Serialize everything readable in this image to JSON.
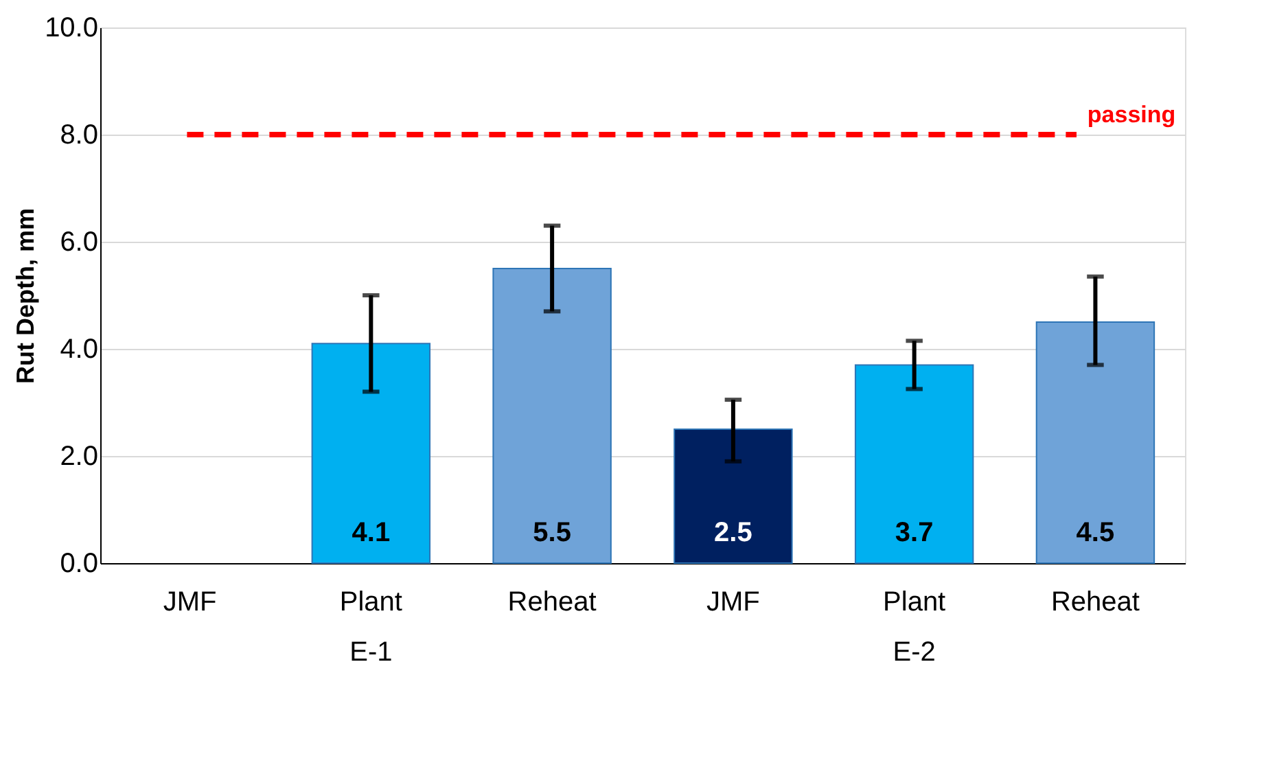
{
  "chart_data": {
    "type": "bar",
    "ylabel": "Rut Depth, mm",
    "categories": [
      "JMF",
      "Plant",
      "Reheat",
      "JMF",
      "Plant",
      "Reheat"
    ],
    "values": [
      null,
      4.1,
      5.5,
      2.5,
      3.7,
      4.5
    ],
    "colors": [
      "#002060",
      "#00b0f0",
      "#6fa3d8",
      "#002060",
      "#00b0f0",
      "#6fa3d8"
    ],
    "errors": [
      null,
      [
        3.2,
        5.0
      ],
      [
        4.7,
        6.3
      ],
      [
        1.9,
        3.05
      ],
      [
        3.25,
        4.15
      ],
      [
        3.7,
        5.35
      ]
    ],
    "ylim": [
      0,
      10
    ],
    "yticks": [
      {
        "value": 0,
        "label": "0.0"
      },
      {
        "value": 2,
        "label": "2.0"
      },
      {
        "value": 4,
        "label": "4.0"
      },
      {
        "value": 6,
        "label": "6.0"
      },
      {
        "value": 8,
        "label": "8.0"
      },
      {
        "value": 10,
        "label": "10.0"
      }
    ],
    "grid": "y",
    "data_labels": true,
    "ref_lines": [
      {
        "axis": "y",
        "value": 8,
        "label": "passing",
        "color": "#ff0000",
        "line_style": "dashed"
      }
    ],
    "annotations": [
      "E-1",
      "E-2"
    ]
  }
}
